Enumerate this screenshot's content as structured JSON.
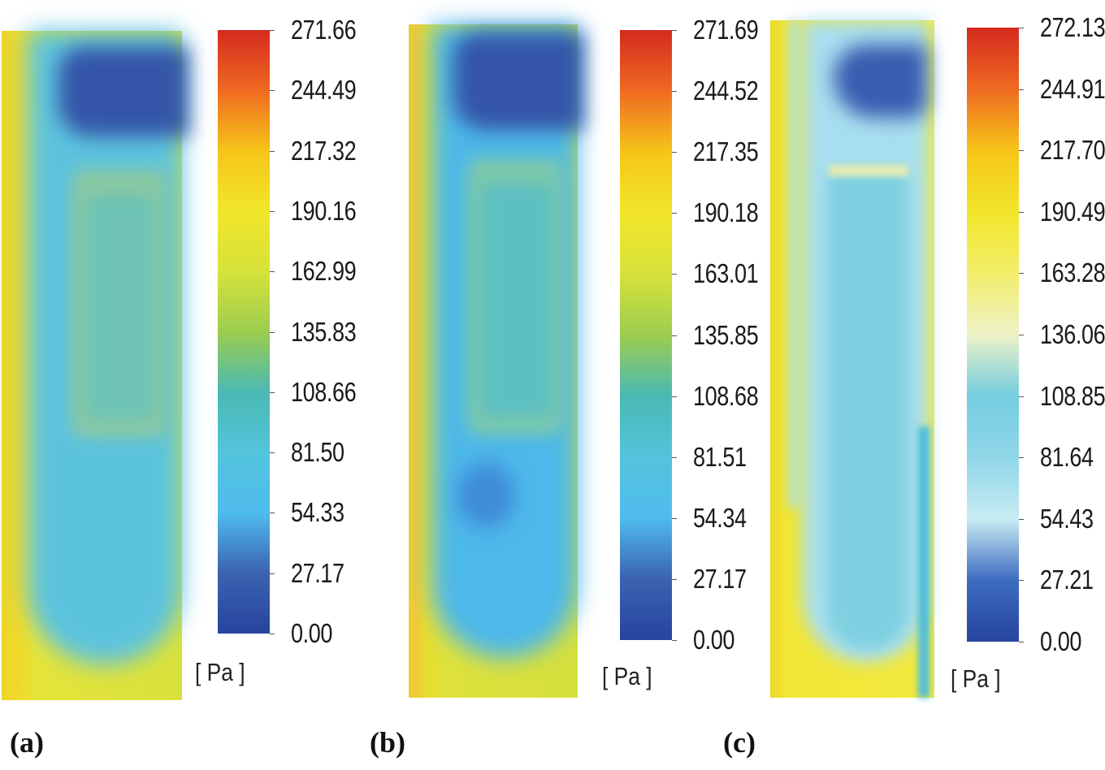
{
  "chart_data": [
    {
      "type": "heatmap",
      "panel_label": "(a)",
      "unit": "[ Pa ]",
      "colorbar_min": 0.0,
      "colorbar_max": 271.66,
      "colorbar_ticks": [
        "271.66",
        "244.49",
        "217.32",
        "190.16",
        "162.99",
        "135.83",
        "108.66",
        "81.50",
        "54.33",
        "27.17",
        "0.00"
      ],
      "colorbar_stops": [
        "#d42a1e",
        "#ef6a22",
        "#f5c518",
        "#f2e62a",
        "#d6e23a",
        "#9ccd4f",
        "#4ab9b3",
        "#53c4dc",
        "#4fbcee",
        "#3b62b0",
        "#26449e"
      ]
    },
    {
      "type": "heatmap",
      "panel_label": "(b)",
      "unit": "[ Pa ]",
      "colorbar_min": 0.0,
      "colorbar_max": 271.69,
      "colorbar_ticks": [
        "271.69",
        "244.52",
        "217.35",
        "190.18",
        "163.01",
        "135.85",
        "108.68",
        "81.51",
        "54.34",
        "27.17",
        "0.00"
      ],
      "colorbar_stops": [
        "#d42a1e",
        "#ef6a22",
        "#f5c518",
        "#f2e62a",
        "#d6e23a",
        "#9ccd4f",
        "#4ab9b3",
        "#53c4dc",
        "#4fbcee",
        "#3b62b0",
        "#26449e"
      ]
    },
    {
      "type": "heatmap",
      "panel_label": "(c)",
      "unit": "[ Pa ]",
      "colorbar_min": 0.0,
      "colorbar_max": 272.13,
      "colorbar_ticks": [
        "272.13",
        "244.91",
        "217.70",
        "190.49",
        "163.28",
        "136.06",
        "108.85",
        "81.64",
        "54.43",
        "27.21",
        "0.00"
      ],
      "colorbar_stops": [
        "#d42a1e",
        "#ef6a22",
        "#f5c518",
        "#f2e62a",
        "#f2ee6a",
        "#eef2c8",
        "#74cde0",
        "#8fd6e8",
        "#c9ecf4",
        "#3d6cc0",
        "#26449e"
      ]
    }
  ]
}
